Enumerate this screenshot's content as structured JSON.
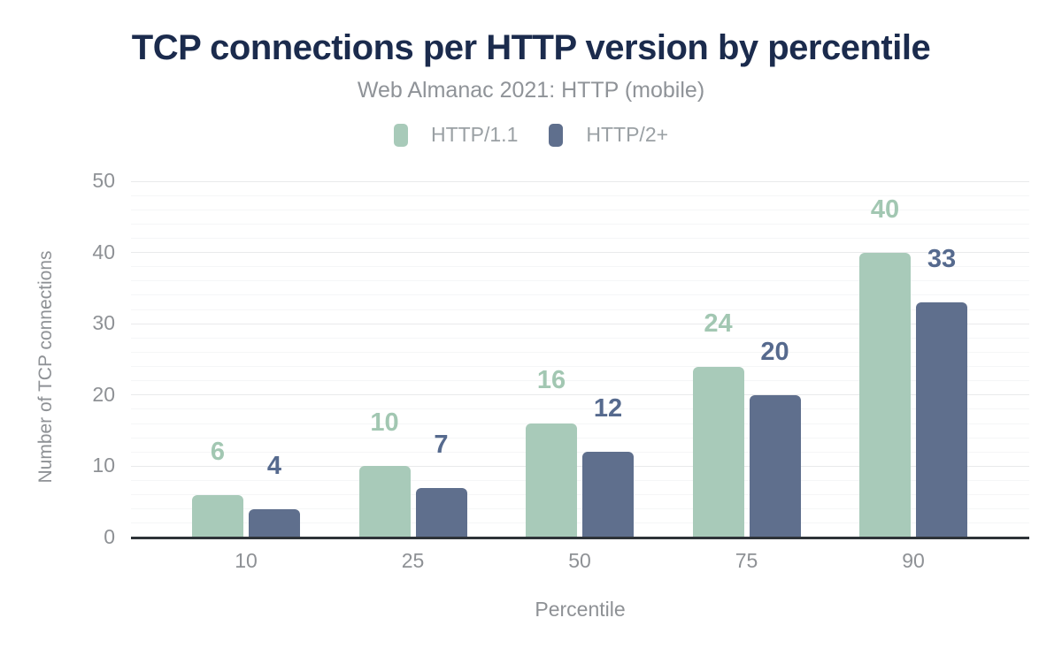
{
  "chart_data": {
    "type": "bar",
    "title": "TCP connections per HTTP version by percentile",
    "subtitle": "Web Almanac 2021: HTTP (mobile)",
    "categories": [
      "10",
      "25",
      "50",
      "75",
      "90"
    ],
    "series": [
      {
        "name": "HTTP/1.1",
        "values": [
          6,
          10,
          16,
          24,
          40
        ],
        "bar_color": "#a8cab9",
        "label_color": "#a2c7b2"
      },
      {
        "name": "HTTP/2+",
        "values": [
          4,
          7,
          12,
          20,
          33
        ],
        "bar_color": "#5f6f8d",
        "label_color": "#566a8e"
      }
    ],
    "xlabel": "Percentile",
    "ylabel": "Number of TCP connections",
    "ylim": [
      0,
      50
    ],
    "yticks": [
      0,
      10,
      20,
      30,
      40,
      50
    ],
    "grid": {
      "major_step": 10,
      "minor_step": 2,
      "grid_on": true
    },
    "legend_position": "top",
    "data_labels_on": true
  },
  "colors": {
    "title": "#1b2b4d",
    "subtitle": "#8f9398",
    "legend_text": "#9aa0a4",
    "tick_text": "#8e9195",
    "grid_major": "#e9eaeb",
    "grid_minor": "#f5f6f7",
    "axis_line": "#2e3338",
    "background": "#ffffff"
  }
}
